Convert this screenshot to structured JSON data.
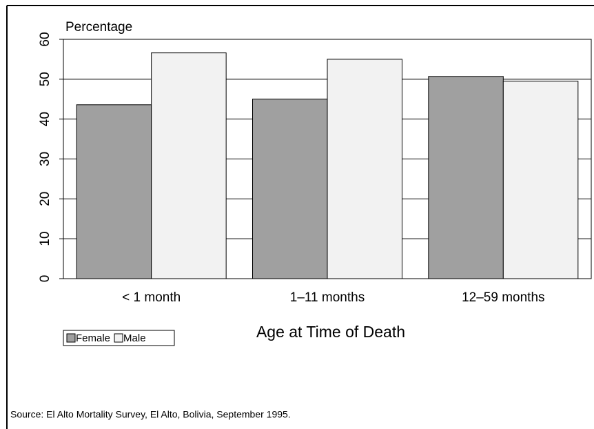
{
  "chart_data": {
    "type": "bar",
    "y_label": "Percentage",
    "x_label": "Age at Time of Death",
    "source": "Source: El Alto Mortality Survey,  El Alto, Bolivia,  September 1995.",
    "categories": [
      "< 1 month",
      "1–11 months",
      "12–59 months"
    ],
    "series": [
      {
        "name": "Female",
        "color": "#a0a0a0",
        "values": [
          43.6,
          45.0,
          50.7
        ]
      },
      {
        "name": "Male",
        "color": "#f2f2f2",
        "values": [
          56.6,
          55.0,
          49.5
        ]
      }
    ],
    "ylim": [
      0,
      60
    ],
    "yticks": [
      0,
      10,
      20,
      30,
      40,
      50,
      60
    ],
    "grid": true
  }
}
